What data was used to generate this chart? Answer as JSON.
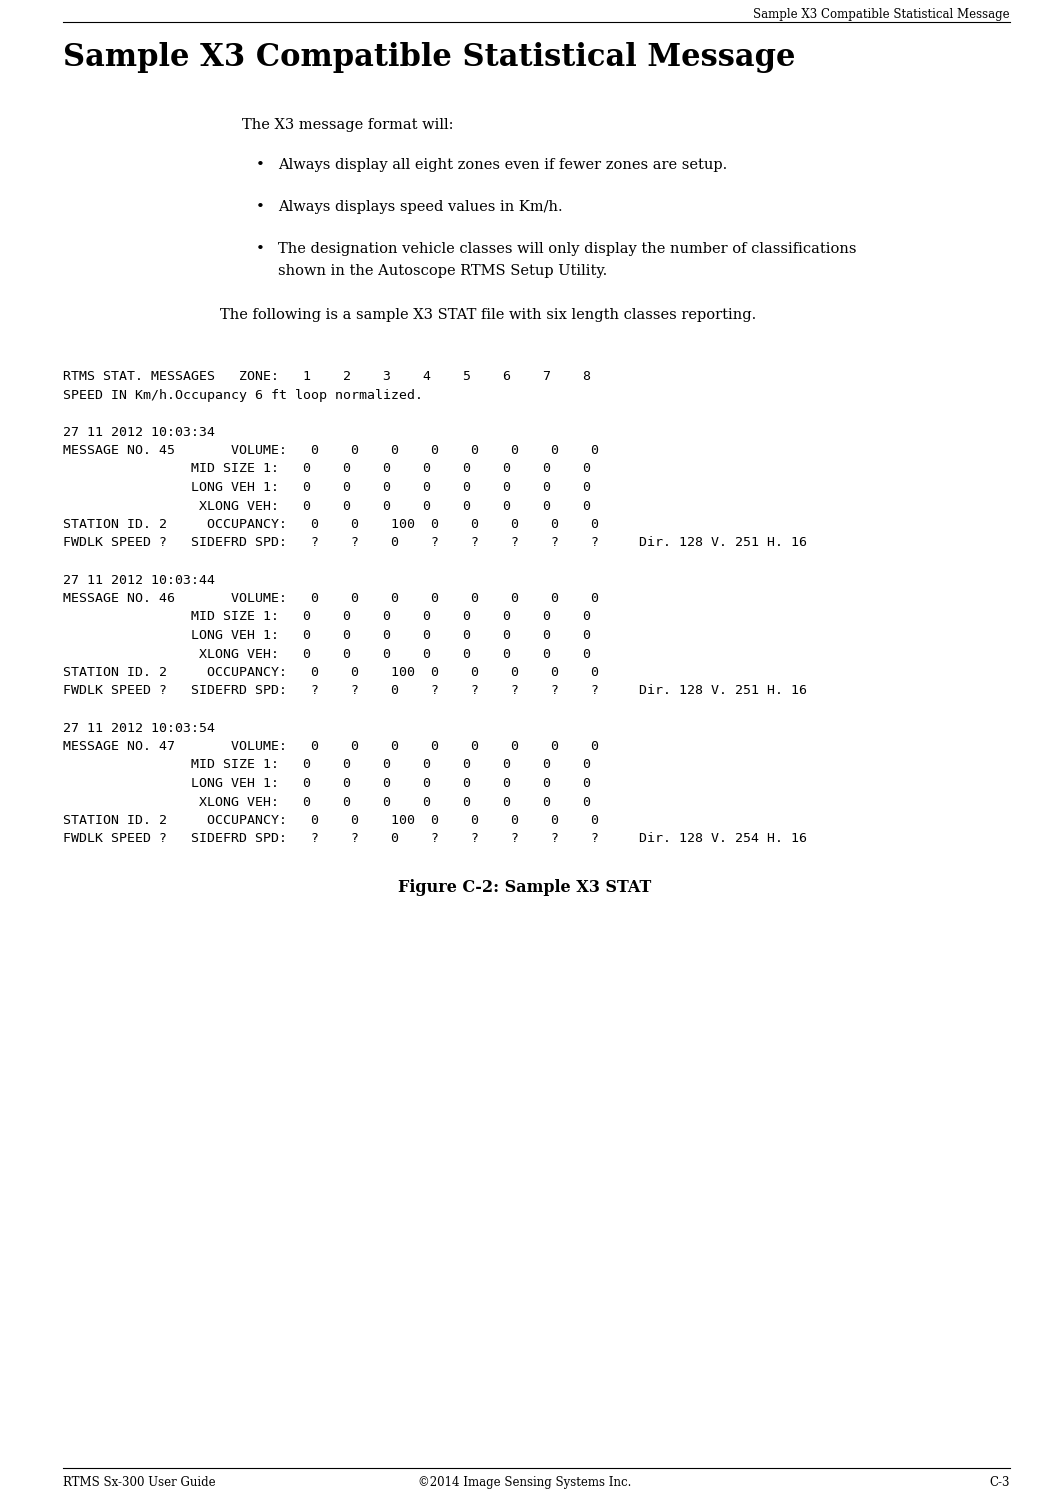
{
  "header_right": "Sample X3 Compatible Statistical Message",
  "title": "Sample X3 Compatible Statistical Message",
  "intro": "The X3 message format will:",
  "bullets": [
    "Always display all eight zones even if fewer zones are setup.",
    "Always displays speed values in Km/h.",
    "The designation vehicle classes will only display the number of classifications\nshown in the Autoscope RTMS Setup Utility."
  ],
  "following": "The following is a sample X3 STAT file with six length classes reporting.",
  "code_lines": [
    "RTMS STAT. MESSAGES   ZONE:   1    2    3    4    5    6    7    8",
    "SPEED IN Km/h.Occupancy 6 ft loop normalized.",
    "",
    "27 11 2012 10:03:34",
    "MESSAGE NO. 45       VOLUME:   0    0    0    0    0    0    0    0",
    "                MID SIZE 1:   0    0    0    0    0    0    0    0",
    "                LONG VEH 1:   0    0    0    0    0    0    0    0",
    "                 XLONG VEH:   0    0    0    0    0    0    0    0",
    "STATION ID. 2     OCCUPANCY:   0    0    100  0    0    0    0    0",
    "FWDLK SPEED ?   SIDEFRD SPD:   ?    ?    0    ?    ?    ?    ?    ?     Dir. 128 V. 251 H. 16",
    "",
    "27 11 2012 10:03:44",
    "MESSAGE NO. 46       VOLUME:   0    0    0    0    0    0    0    0",
    "                MID SIZE 1:   0    0    0    0    0    0    0    0",
    "                LONG VEH 1:   0    0    0    0    0    0    0    0",
    "                 XLONG VEH:   0    0    0    0    0    0    0    0",
    "STATION ID. 2     OCCUPANCY:   0    0    100  0    0    0    0    0",
    "FWDLK SPEED ?   SIDEFRD SPD:   ?    ?    0    ?    ?    ?    ?    ?     Dir. 128 V. 251 H. 16",
    "",
    "27 11 2012 10:03:54",
    "MESSAGE NO. 47       VOLUME:   0    0    0    0    0    0    0    0",
    "                MID SIZE 1:   0    0    0    0    0    0    0    0",
    "                LONG VEH 1:   0    0    0    0    0    0    0    0",
    "                 XLONG VEH:   0    0    0    0    0    0    0    0",
    "STATION ID. 2     OCCUPANCY:   0    0    100  0    0    0    0    0",
    "FWDLK SPEED ?   SIDEFRD SPD:   ?    ?    0    ?    ?    ?    ?    ?     Dir. 128 V. 254 H. 16"
  ],
  "figure_caption": "Figure C-2: Sample X3 STAT",
  "footer_left": "RTMS Sx-300 User Guide",
  "footer_center": "©2014 Image Sensing Systems Inc.",
  "footer_right": "C-3",
  "bg_color": "#ffffff",
  "text_color": "#000000"
}
